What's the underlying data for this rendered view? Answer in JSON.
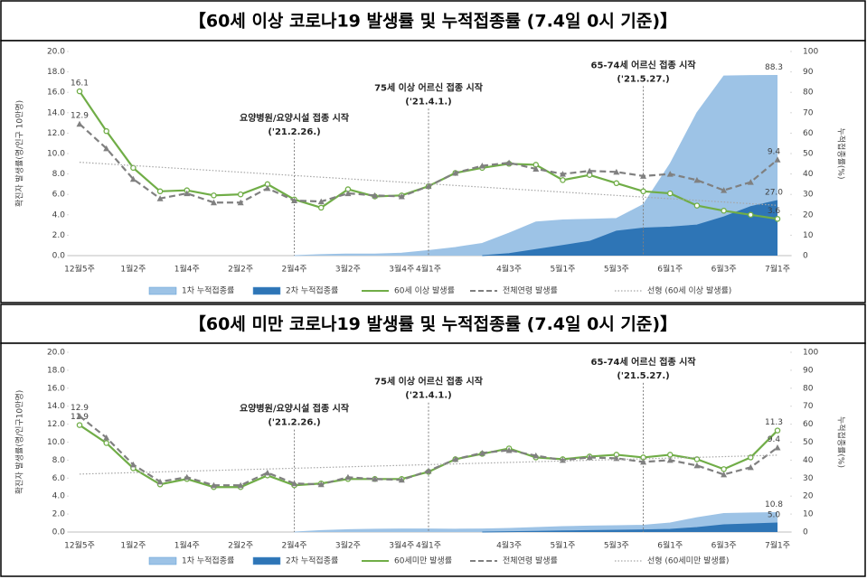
{
  "chart_data": [
    {
      "type": "combo",
      "title": "【60세 이상 코로나19 발생률 및 누적접종률 (7.4일 0시 기준)】",
      "y_label": "확진자 발생률(명/인구 10만명)",
      "y2_label": "누적접종률(%)",
      "categories": [
        "12월5주",
        null,
        "1월2주",
        null,
        "1월4주",
        null,
        "2월2주",
        null,
        "2월4주",
        null,
        "3월2주",
        null,
        "3월4주",
        "4월1주",
        null,
        null,
        "4월3주",
        null,
        "5월1주",
        null,
        "5월3주",
        null,
        "6월1주",
        null,
        "6월3주",
        null,
        "7월1주"
      ],
      "ylim": [
        0,
        20
      ],
      "yticks": [
        {
          "value": 0,
          "label": "0.0"
        },
        {
          "value": 2,
          "label": "2.0"
        },
        {
          "value": 4,
          "label": "4.0"
        },
        {
          "value": 6,
          "label": "6.0"
        },
        {
          "value": 8,
          "label": "8.0"
        },
        {
          "value": 10,
          "label": "10.0"
        },
        {
          "value": 12,
          "label": "12.0"
        },
        {
          "value": 14,
          "label": "14.0"
        },
        {
          "value": 16,
          "label": "16.0"
        },
        {
          "value": 18,
          "label": "18.0"
        },
        {
          "value": 20,
          "label": "20.0"
        }
      ],
      "y2lim": [
        0,
        100
      ],
      "y2ticks": [
        0,
        10,
        20,
        30,
        40,
        50,
        60,
        70,
        80,
        90,
        100
      ],
      "grid": false,
      "series": [
        {
          "name": "1차 누적접종률",
          "kind": "area",
          "axis": "y2",
          "color": "#9dc3e6",
          "values": [
            null,
            null,
            null,
            null,
            null,
            null,
            null,
            null,
            0,
            0.5,
            0.8,
            0.8,
            1.2,
            2.5,
            4,
            6,
            11,
            16.5,
            17.5,
            17.8,
            18.2,
            25,
            45,
            70,
            88,
            88.2,
            88.3
          ],
          "value_labels": [
            null,
            null,
            null,
            null,
            null,
            null,
            null,
            null,
            null,
            null,
            null,
            null,
            null,
            null,
            null,
            null,
            null,
            null,
            null,
            null,
            null,
            null,
            null,
            null,
            null,
            null,
            "88.3"
          ]
        },
        {
          "name": "2차 누적접종률",
          "kind": "area",
          "axis": "y2",
          "color": "#2e75b6",
          "values": [
            null,
            null,
            null,
            null,
            null,
            null,
            null,
            null,
            null,
            null,
            null,
            null,
            null,
            null,
            null,
            0,
            1,
            3,
            5,
            7,
            12,
            13.5,
            14,
            15,
            19,
            24,
            27.0
          ],
          "value_labels": [
            null,
            null,
            null,
            null,
            null,
            null,
            null,
            null,
            null,
            null,
            null,
            null,
            null,
            null,
            null,
            null,
            null,
            null,
            null,
            null,
            null,
            null,
            null,
            null,
            null,
            null,
            "27.0"
          ]
        },
        {
          "name": "60세 이상 발생률",
          "kind": "line",
          "color": "#70ad47",
          "values": [
            16.1,
            12.2,
            8.6,
            6.3,
            6.4,
            5.9,
            6.0,
            7.0,
            5.5,
            4.7,
            6.5,
            5.8,
            5.9,
            6.8,
            8.1,
            8.6,
            9.0,
            8.9,
            7.4,
            7.9,
            7.1,
            6.3,
            6.1,
            4.9,
            4.4,
            4.0,
            3.6
          ],
          "value_labels": [
            "16.1",
            null,
            null,
            null,
            null,
            null,
            null,
            null,
            null,
            null,
            null,
            null,
            null,
            null,
            null,
            null,
            null,
            null,
            null,
            null,
            null,
            null,
            null,
            null,
            null,
            null,
            "3.6"
          ]
        },
        {
          "name": "전체연령 발생률",
          "kind": "dashed",
          "color": "#808080",
          "values": [
            12.9,
            10.5,
            7.5,
            5.6,
            6.1,
            5.2,
            5.2,
            6.6,
            5.4,
            5.3,
            6.1,
            5.9,
            5.8,
            6.8,
            8.1,
            8.8,
            9.1,
            8.5,
            8.0,
            8.3,
            8.2,
            7.8,
            8.0,
            7.4,
            6.4,
            7.2,
            9.4
          ],
          "value_labels": [
            "12.9",
            null,
            null,
            null,
            null,
            null,
            null,
            null,
            null,
            null,
            null,
            null,
            null,
            null,
            null,
            null,
            null,
            null,
            null,
            null,
            null,
            null,
            null,
            null,
            null,
            null,
            "9.4"
          ]
        },
        {
          "name": "선형 (60세 이상 발생률)",
          "kind": "trend",
          "color": "#a6a6a6"
        }
      ],
      "annotations": [
        {
          "index": 8,
          "text": "요양병원/요양시설 접종 시작",
          "date": "('21.2.26.)"
        },
        {
          "index": 13,
          "text": "75세 이상 어르신 접종 시작",
          "date": "('21.4.1.)"
        },
        {
          "index": 21,
          "text": "65-74세 어르신 접종 시작",
          "date": "('21.5.27.)"
        }
      ]
    },
    {
      "type": "combo",
      "title": "【60세 미만 코로나19 발생률 및 누적접종률 (7.4일 0시 기준)】",
      "y_label": "확진자 발생률(명/인구10만명)",
      "y2_label": "누적접종률(%)",
      "categories": [
        "12월5주",
        null,
        "1월2주",
        null,
        "1월4주",
        null,
        "2월2주",
        null,
        "2월4주",
        null,
        "3월2주",
        null,
        "3월4주",
        "4월1주",
        null,
        null,
        "4월3주",
        null,
        "5월1주",
        null,
        "5월3주",
        null,
        "6월1주",
        null,
        "6월3주",
        null,
        "7월1주"
      ],
      "ylim": [
        0,
        20
      ],
      "yticks": [
        {
          "value": 0,
          "label": "0.0"
        },
        {
          "value": 2,
          "label": "2.0"
        },
        {
          "value": 4,
          "label": "4.0"
        },
        {
          "value": 6,
          "label": "6.0"
        },
        {
          "value": 8,
          "label": "8.0"
        },
        {
          "value": 10,
          "label": "10.0"
        },
        {
          "value": 12,
          "label": "12.0"
        },
        {
          "value": 14,
          "label": "14.0"
        },
        {
          "value": 16,
          "label": "16.0"
        },
        {
          "value": 18,
          "label": "18.0"
        },
        {
          "value": 20,
          "label": "20.0"
        }
      ],
      "y2lim": [
        0,
        100
      ],
      "y2ticks": [
        0,
        10,
        20,
        30,
        40,
        50,
        60,
        70,
        80,
        90,
        100
      ],
      "grid": false,
      "series": [
        {
          "name": "1차 누적접종률",
          "kind": "area",
          "axis": "y2",
          "color": "#9dc3e6",
          "values": [
            null,
            null,
            null,
            null,
            null,
            null,
            null,
            null,
            0,
            0.8,
            1.3,
            1.6,
            1.7,
            1.7,
            1.6,
            1.7,
            2.0,
            2.5,
            3.0,
            3.3,
            3.5,
            3.8,
            5.0,
            8.0,
            10.3,
            10.6,
            10.8
          ],
          "value_labels": [
            null,
            null,
            null,
            null,
            null,
            null,
            null,
            null,
            null,
            null,
            null,
            null,
            null,
            null,
            null,
            null,
            null,
            null,
            null,
            null,
            null,
            null,
            null,
            null,
            null,
            null,
            "10.8"
          ]
        },
        {
          "name": "2차 누적접종률",
          "kind": "area",
          "axis": "y2",
          "color": "#2e75b6",
          "values": [
            null,
            null,
            null,
            null,
            null,
            null,
            null,
            null,
            null,
            null,
            null,
            null,
            null,
            null,
            null,
            0,
            0.2,
            0.4,
            0.6,
            0.8,
            1.0,
            1.2,
            1.5,
            2.5,
            4,
            4.5,
            5.0
          ],
          "value_labels": [
            null,
            null,
            null,
            null,
            null,
            null,
            null,
            null,
            null,
            null,
            null,
            null,
            null,
            null,
            null,
            null,
            null,
            null,
            null,
            null,
            null,
            null,
            null,
            null,
            null,
            null,
            "5.0"
          ]
        },
        {
          "name": "60세미만 발생률",
          "kind": "line",
          "color": "#70ad47",
          "values": [
            11.9,
            9.9,
            7.1,
            5.3,
            5.9,
            5.0,
            5.0,
            6.3,
            5.2,
            5.4,
            5.9,
            5.9,
            5.9,
            6.7,
            8.1,
            8.7,
            9.3,
            8.3,
            8.1,
            8.4,
            8.6,
            8.3,
            8.6,
            8.1,
            7.0,
            8.3,
            11.3
          ],
          "value_labels": [
            "11.9",
            null,
            null,
            null,
            null,
            null,
            null,
            null,
            null,
            null,
            null,
            null,
            null,
            null,
            null,
            null,
            null,
            null,
            null,
            null,
            null,
            null,
            null,
            null,
            null,
            null,
            "11.3"
          ]
        },
        {
          "name": "전체연령 발생률",
          "kind": "dashed",
          "color": "#808080",
          "values": [
            12.9,
            10.5,
            7.5,
            5.6,
            6.1,
            5.2,
            5.2,
            6.6,
            5.4,
            5.3,
            6.1,
            5.9,
            5.8,
            6.8,
            8.1,
            8.8,
            9.1,
            8.5,
            8.0,
            8.3,
            8.2,
            7.8,
            8.0,
            7.4,
            6.4,
            7.2,
            9.4
          ],
          "value_labels": [
            "12.9",
            null,
            null,
            null,
            null,
            null,
            null,
            null,
            null,
            null,
            null,
            null,
            null,
            null,
            null,
            null,
            null,
            null,
            null,
            null,
            null,
            null,
            null,
            null,
            null,
            null,
            "9.4"
          ]
        },
        {
          "name": "선형 (60세미만 발생률)",
          "kind": "trend",
          "color": "#a6a6a6"
        }
      ],
      "annotations": [
        {
          "index": 8,
          "text": "요양병원/요양시설 접종 시작",
          "date": "('21.2.26.)"
        },
        {
          "index": 13,
          "text": "75세 이상 어르신 접종 시작",
          "date": "('21.4.1.)"
        },
        {
          "index": 21,
          "text": "65-74세 어르신 접종 시작",
          "date": "('21.5.27.)"
        }
      ]
    }
  ]
}
